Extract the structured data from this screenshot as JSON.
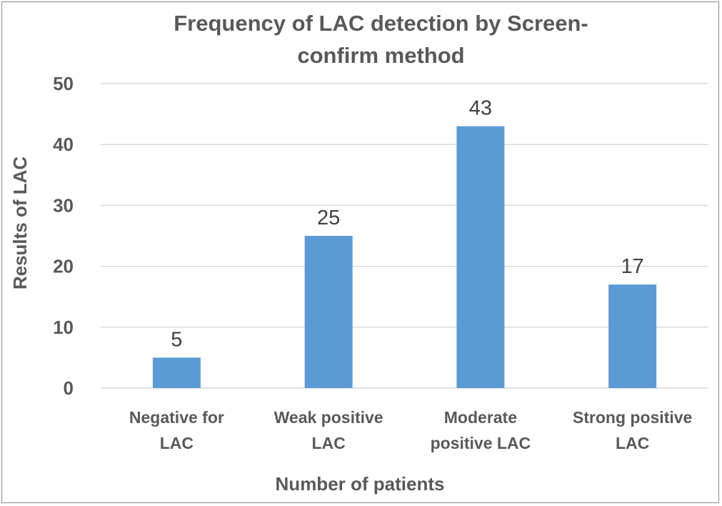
{
  "chart_data": {
    "type": "bar",
    "title": "Frequency of LAC detection by Screen-\nconfirm method",
    "categories": [
      "Negative for\nLAC",
      "Weak positive\nLAC",
      "Moderate\npositive LAC",
      "Strong positive\nLAC"
    ],
    "values": [
      5,
      25,
      43,
      17
    ],
    "data_labels": [
      "5",
      "25",
      "43",
      "17"
    ],
    "xlabel": "Number of patients",
    "ylabel": "Results of LAC",
    "ylim": [
      0,
      50
    ],
    "yticks": [
      0,
      10,
      20,
      30,
      40,
      50
    ],
    "grid": true,
    "bar_color": "#5b9bd5",
    "grid_color": "#d9d9d9"
  }
}
